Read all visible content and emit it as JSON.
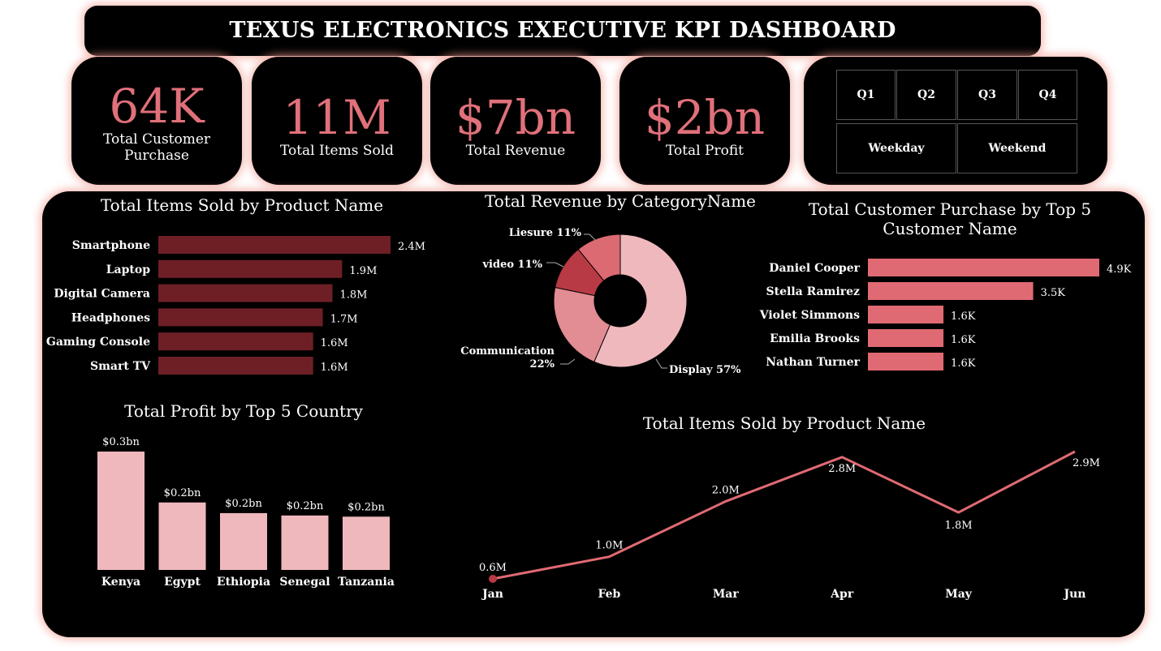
{
  "header": {
    "title": "TEXUS ELECTRONICS EXECUTIVE KPI DASHBOARD"
  },
  "kpis": [
    {
      "value": "64K",
      "label": "Total Customer Purchase"
    },
    {
      "value": "11M",
      "label": "Total Items Sold"
    },
    {
      "value": "$7bn",
      "label": "Total Revenue"
    },
    {
      "value": "$2bn",
      "label": "Total Profit"
    }
  ],
  "filters": {
    "quarters": [
      "Q1",
      "Q2",
      "Q3",
      "Q4"
    ],
    "days": [
      "Weekday",
      "Weekend"
    ]
  },
  "colors": {
    "accent": "#e0707a",
    "dark_bar": "#6e1f26",
    "pink_bar": "#e06a73",
    "light_bar": "#efb8bd",
    "glow": "#f0968c"
  },
  "chart_data": [
    {
      "type": "bar",
      "orientation": "horizontal",
      "title": "Total Items Sold by Product Name",
      "categories": [
        "Smartphone",
        "Laptop",
        "Digital Camera",
        "Headphones",
        "Gaming Console",
        "Smart TV"
      ],
      "values": [
        2.4,
        1.9,
        1.8,
        1.7,
        1.6,
        1.6
      ],
      "labels": [
        "2.4M",
        "1.9M",
        "1.8M",
        "1.7M",
        "1.6M",
        "1.6M"
      ],
      "unit": "M"
    },
    {
      "type": "pie",
      "donut": true,
      "title": "Total Revenue by CategoryName",
      "categories": [
        "Display",
        "Communication",
        "video",
        "Liesure"
      ],
      "values": [
        57,
        22,
        11,
        11
      ],
      "labels": [
        "Display 57%",
        "Communication 22%",
        "video 11%",
        "Liesure 11%"
      ]
    },
    {
      "type": "bar",
      "orientation": "horizontal",
      "title": "Total Customer Purchase by Top 5 Customer Name",
      "categories": [
        "Daniel Cooper",
        "Stella Ramirez",
        "Violet Simmons",
        "Emilia Brooks",
        "Nathan Turner"
      ],
      "values": [
        4.9,
        3.5,
        1.6,
        1.6,
        1.6
      ],
      "labels": [
        "4.9K",
        "3.5K",
        "1.6K",
        "1.6K",
        "1.6K"
      ],
      "unit": "K"
    },
    {
      "type": "bar",
      "title": "Total Profit by Top 5 Country",
      "categories": [
        "Kenya",
        "Egypt",
        "Ethiopia",
        "Senegal",
        "Tanzania"
      ],
      "values": [
        0.3,
        0.2,
        0.2,
        0.2,
        0.2
      ],
      "labels": [
        "$0.3bn",
        "$0.2bn",
        "$0.2bn",
        "$0.2bn",
        "$0.2bn"
      ],
      "unit": "bn"
    },
    {
      "type": "line",
      "title": "Total Items Sold by Product Name",
      "x": [
        "Jan",
        "Feb",
        "Mar",
        "Apr",
        "May",
        "Jun"
      ],
      "values": [
        0.6,
        1.0,
        2.0,
        2.8,
        1.8,
        2.9
      ],
      "labels": [
        "0.6M",
        "1.0M",
        "2.0M",
        "2.8M",
        "1.8M",
        "2.9M"
      ],
      "unit": "M"
    }
  ]
}
